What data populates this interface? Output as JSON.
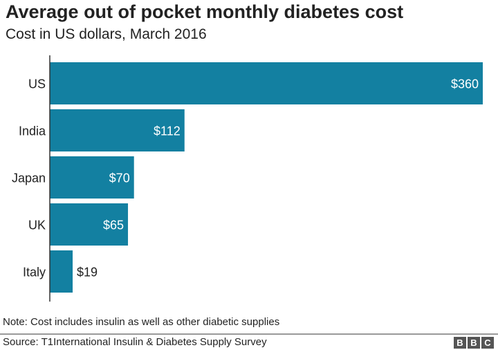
{
  "chart_data": {
    "type": "bar",
    "orientation": "horizontal",
    "title": "Average out of pocket monthly diabetes cost",
    "subtitle": "Cost in US dollars, March 2016",
    "categories": [
      "US",
      "India",
      "Japan",
      "UK",
      "Italy"
    ],
    "values": [
      360,
      112,
      70,
      65,
      19
    ],
    "data_labels": [
      "$360",
      "$112",
      "$70",
      "$65",
      "$19"
    ],
    "xlim": [
      0,
      360
    ],
    "grid": false,
    "bar_color": "#1380A1"
  },
  "note": "Note: Cost includes insulin as well as other diabetic supplies",
  "source": "Source: T1International Insulin & Diabetes Supply Survey",
  "logo": [
    "B",
    "B",
    "C"
  ]
}
